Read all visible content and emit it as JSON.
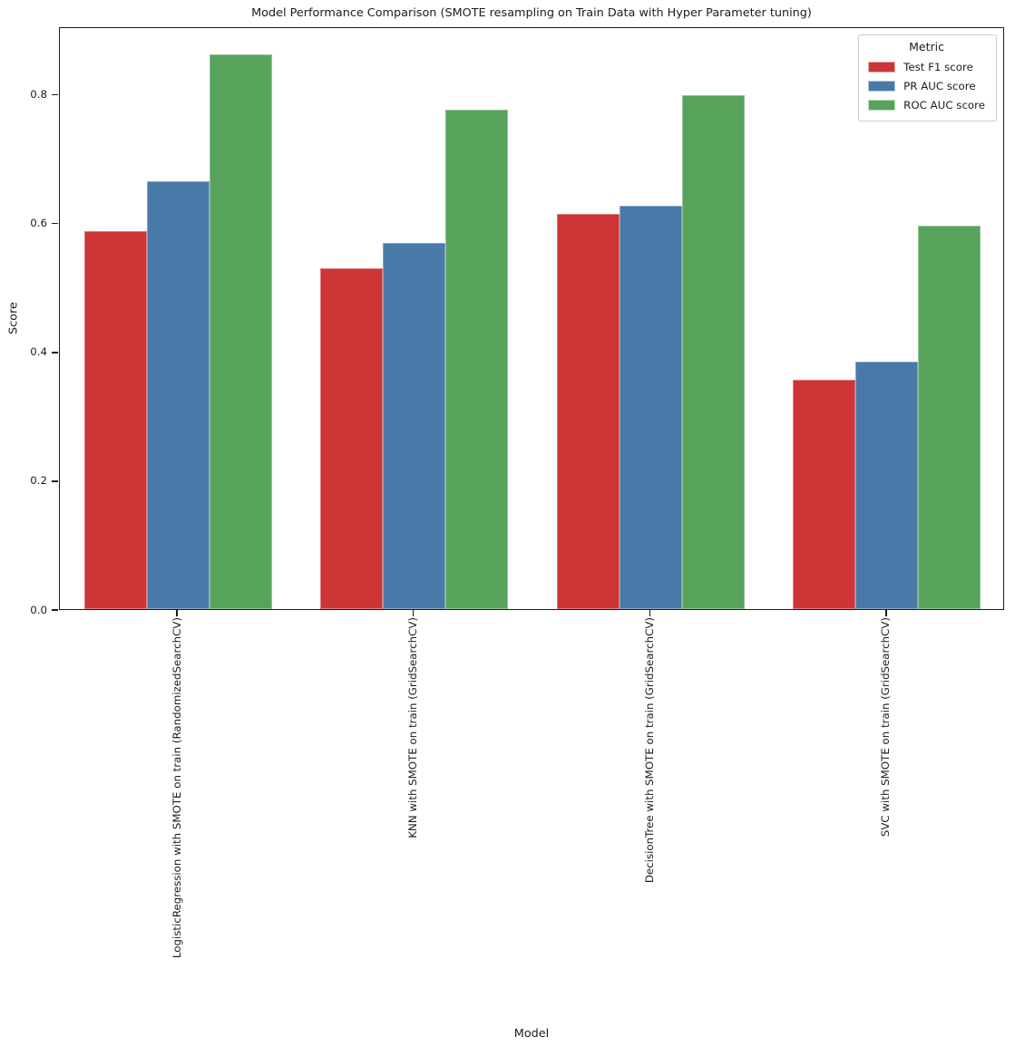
{
  "chart_data": {
    "type": "bar",
    "title": "Model Performance Comparison (SMOTE resampling on Train Data with Hyper Parameter tuning)",
    "xlabel": "Model",
    "ylabel": "Score",
    "categories": [
      "LogisticRegression with SMOTE on train (RandomizedSearchCV)",
      "KNN with SMOTE on train (GridSearchCV)",
      "DecisionTree with SMOTE on train (GridSearchCV)",
      "SVC with SMOTE on train (GridSearchCV)"
    ],
    "series": [
      {
        "name": "Test F1 score",
        "color": "#cc3436",
        "values": [
          0.587,
          0.529,
          0.614,
          0.356
        ]
      },
      {
        "name": "PR AUC score",
        "color": "#4879a9",
        "values": [
          0.665,
          0.568,
          0.626,
          0.385
        ]
      },
      {
        "name": "ROC AUC score",
        "color": "#58a35c",
        "values": [
          0.862,
          0.776,
          0.798,
          0.595
        ]
      }
    ],
    "legend": {
      "title": "Metric",
      "position": "upper right"
    },
    "ylim": [
      0,
      0.905
    ],
    "yticks": [
      0,
      0.2,
      0.4,
      0.6,
      0.8
    ],
    "ytick_labels": [
      "0.0",
      "0.2",
      "0.4",
      "0.6",
      "0.8"
    ],
    "grid": false,
    "axis_color": "#1c1c1c"
  }
}
